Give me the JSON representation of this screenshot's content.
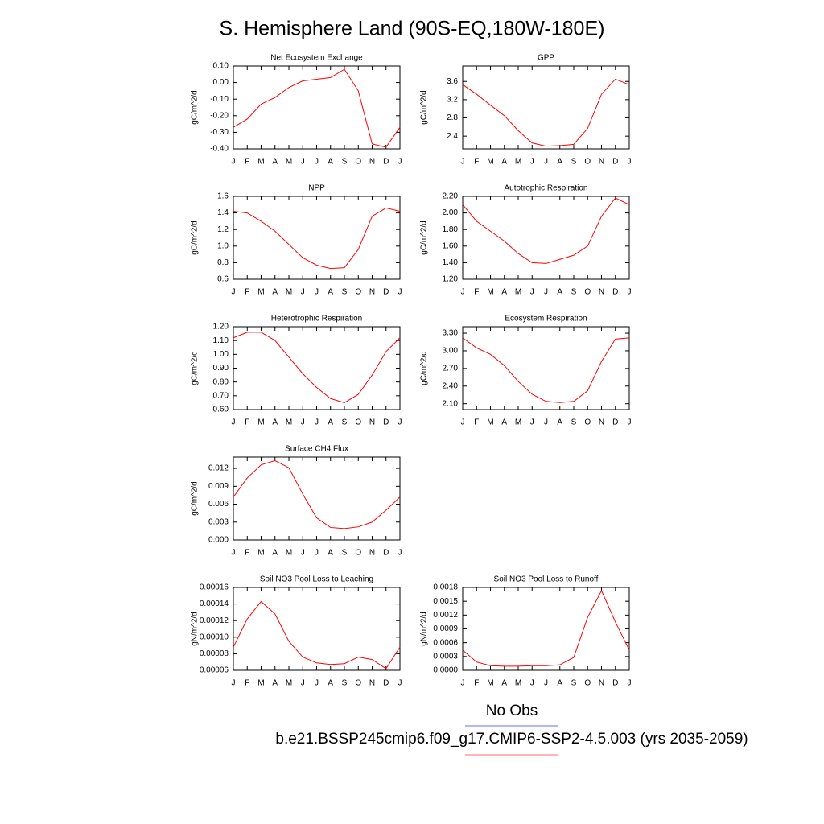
{
  "title": "S. Hemisphere Land (90S-EQ,180W-180E)",
  "legend": [
    {
      "label": "No Obs",
      "color": "#6b6bff"
    },
    {
      "label": "b.e21.BSSP245cmip6.f09_g17.CMIP6-SSP2-4.5.003 (yrs 2035-2059)",
      "color": "#ff6b6b"
    }
  ],
  "chart_data": [
    {
      "type": "line",
      "title": "Net Ecosystem Exchange",
      "ylabel": "gC/m^2/d",
      "color": "#ff0000",
      "categories": [
        "J",
        "F",
        "M",
        "A",
        "M",
        "J",
        "J",
        "A",
        "S",
        "O",
        "N",
        "D",
        "J"
      ],
      "values": [
        -0.27,
        -0.22,
        -0.13,
        -0.09,
        -0.03,
        0.01,
        0.02,
        0.03,
        0.08,
        -0.05,
        -0.37,
        -0.39,
        -0.27
      ],
      "ylim": [
        -0.4,
        0.1
      ],
      "yticks": [
        {
          "value": -0.4,
          "label": "-0.40"
        },
        {
          "value": -0.3,
          "label": "-0.30"
        },
        {
          "value": -0.2,
          "label": "-0.20"
        },
        {
          "value": -0.1,
          "label": "-0.10"
        },
        {
          "value": 0,
          "label": "0.00"
        },
        {
          "value": 0.1,
          "label": "0.10"
        }
      ]
    },
    {
      "type": "line",
      "title": "GPP",
      "ylabel": "gC/m^2/d",
      "color": "#ff0000",
      "categories": [
        "J",
        "F",
        "M",
        "A",
        "M",
        "J",
        "J",
        "A",
        "S",
        "O",
        "N",
        "D",
        "J"
      ],
      "values": [
        3.53,
        3.32,
        3.08,
        2.85,
        2.52,
        2.25,
        2.18,
        2.19,
        2.22,
        2.57,
        3.32,
        3.65,
        3.53
      ],
      "ylim": [
        2.12,
        3.94
      ],
      "yticks": [
        2.4,
        2.8,
        3.2,
        3.6
      ]
    },
    {
      "type": "line",
      "title": "NPP",
      "ylabel": "gC/m^2/d",
      "color": "#ff0000",
      "categories": [
        "J",
        "F",
        "M",
        "A",
        "M",
        "J",
        "J",
        "A",
        "S",
        "O",
        "N",
        "D",
        "J"
      ],
      "values": [
        1.42,
        1.4,
        1.3,
        1.18,
        1.02,
        0.86,
        0.77,
        0.73,
        0.74,
        0.96,
        1.36,
        1.46,
        1.42
      ],
      "ylim": [
        0.6,
        1.6
      ],
      "yticks": [
        0.6,
        0.8,
        {
          "value": 1,
          "label": "1.0"
        },
        1.2,
        1.4,
        1.6
      ]
    },
    {
      "type": "line",
      "title": "Autotrophic Respiration",
      "ylabel": "gC/m^2/d",
      "color": "#ff0000",
      "categories": [
        "J",
        "F",
        "M",
        "A",
        "M",
        "J",
        "J",
        "A",
        "S",
        "O",
        "N",
        "D",
        "J"
      ],
      "values": [
        2.1,
        1.9,
        1.78,
        1.66,
        1.51,
        1.4,
        1.39,
        1.44,
        1.49,
        1.6,
        1.96,
        2.18,
        2.1
      ],
      "ylim": [
        1.2,
        2.2
      ],
      "yticks": [
        {
          "value": 1.2,
          "label": "1.20"
        },
        {
          "value": 1.4,
          "label": "1.40"
        },
        {
          "value": 1.6,
          "label": "1.60"
        },
        {
          "value": 1.8,
          "label": "1.80"
        },
        {
          "value": 2,
          "label": "2.00"
        },
        {
          "value": 2.2,
          "label": "2.20"
        }
      ]
    },
    {
      "type": "line",
      "title": "Heterotrophic Respiration",
      "ylabel": "gC/m^2/d",
      "color": "#ff0000",
      "categories": [
        "J",
        "F",
        "M",
        "A",
        "M",
        "J",
        "J",
        "A",
        "S",
        "O",
        "N",
        "D",
        "J"
      ],
      "values": [
        1.12,
        1.16,
        1.16,
        1.1,
        0.98,
        0.86,
        0.76,
        0.68,
        0.65,
        0.71,
        0.85,
        1.02,
        1.12
      ],
      "ylim": [
        0.6,
        1.2
      ],
      "yticks": [
        {
          "value": 0.6,
          "label": "0.60"
        },
        {
          "value": 0.7,
          "label": "0.70"
        },
        {
          "value": 0.8,
          "label": "0.80"
        },
        {
          "value": 0.9,
          "label": "0.90"
        },
        {
          "value": 1,
          "label": "1.00"
        },
        {
          "value": 1.1,
          "label": "1.10"
        },
        {
          "value": 1.2,
          "label": "1.20"
        }
      ]
    },
    {
      "type": "line",
      "title": "Ecosystem Respiration",
      "ylabel": "gC/m^2/d",
      "color": "#ff0000",
      "categories": [
        "J",
        "F",
        "M",
        "A",
        "M",
        "J",
        "J",
        "A",
        "S",
        "O",
        "N",
        "D",
        "J"
      ],
      "values": [
        3.22,
        3.05,
        2.94,
        2.75,
        2.48,
        2.26,
        2.14,
        2.12,
        2.14,
        2.32,
        2.82,
        3.2,
        3.22
      ],
      "ylim": [
        2.0,
        3.41
      ],
      "yticks": [
        {
          "value": 2.1,
          "label": "2.10"
        },
        {
          "value": 2.4,
          "label": "2.40"
        },
        {
          "value": 2.7,
          "label": "2.70"
        },
        {
          "value": 3,
          "label": "3.00"
        },
        {
          "value": 3.3,
          "label": "3.30"
        }
      ]
    },
    {
      "type": "line",
      "title": "Surface CH4 Flux",
      "ylabel": "gC/m^2/d",
      "color": "#ff0000",
      "categories": [
        "J",
        "F",
        "M",
        "A",
        "M",
        "J",
        "J",
        "A",
        "S",
        "O",
        "N",
        "D",
        "J"
      ],
      "values": [
        0.0072,
        0.0104,
        0.0126,
        0.0133,
        0.0121,
        0.0077,
        0.0037,
        0.0021,
        0.0019,
        0.0022,
        0.003,
        0.005,
        0.0072
      ],
      "ylim": [
        0,
        0.0139
      ],
      "yticks": [
        {
          "value": 0,
          "label": "0.000"
        },
        {
          "value": 0.003,
          "label": "0.003"
        },
        {
          "value": 0.006,
          "label": "0.006"
        },
        {
          "value": 0.009,
          "label": "0.009"
        },
        {
          "value": 0.012,
          "label": "0.012"
        }
      ]
    },
    {
      "type": "line",
      "title": "Soil NO3 Pool Loss to Leaching",
      "ylabel": "gN/m^2/d",
      "color": "#ff0000",
      "categories": [
        "J",
        "F",
        "M",
        "A",
        "M",
        "J",
        "J",
        "A",
        "S",
        "O",
        "N",
        "D",
        "J"
      ],
      "values": [
        8.8e-05,
        0.000122,
        0.000143,
        0.000128,
        9.5e-05,
        7.6e-05,
        6.9e-05,
        6.7e-05,
        6.8e-05,
        7.6e-05,
        7.3e-05,
        6.2e-05,
        8.8e-05
      ],
      "ylim": [
        6e-05,
        0.00016
      ],
      "yticks": [
        {
          "value": 6e-05,
          "label": "0.00006"
        },
        {
          "value": 8e-05,
          "label": "0.00008"
        },
        {
          "value": 0.0001,
          "label": "0.00010"
        },
        {
          "value": 0.00012,
          "label": "0.00012"
        },
        {
          "value": 0.00014,
          "label": "0.00014"
        },
        {
          "value": 0.00016,
          "label": "0.00016"
        }
      ]
    },
    {
      "type": "line",
      "title": "Soil NO3 Pool Loss to Runoff",
      "ylabel": "gN/m^2/d",
      "color": "#ff0000",
      "categories": [
        "J",
        "F",
        "M",
        "A",
        "M",
        "J",
        "J",
        "A",
        "S",
        "O",
        "N",
        "D",
        "J"
      ],
      "values": [
        0.00044,
        0.00018,
        0.0001,
        9e-05,
        9e-05,
        0.0001,
        0.0001,
        0.00012,
        0.00028,
        0.00115,
        0.00173,
        0.00105,
        0.00044
      ],
      "ylim": [
        0,
        0.0018
      ],
      "yticks": [
        {
          "value": 0,
          "label": "0.0000"
        },
        {
          "value": 0.0003,
          "label": "0.0003"
        },
        {
          "value": 0.0006,
          "label": "0.0006"
        },
        {
          "value": 0.0009,
          "label": "0.0009"
        },
        {
          "value": 0.0012,
          "label": "0.0012"
        },
        {
          "value": 0.0015,
          "label": "0.0015"
        },
        {
          "value": 0.0018,
          "label": "0.0018"
        }
      ]
    }
  ]
}
